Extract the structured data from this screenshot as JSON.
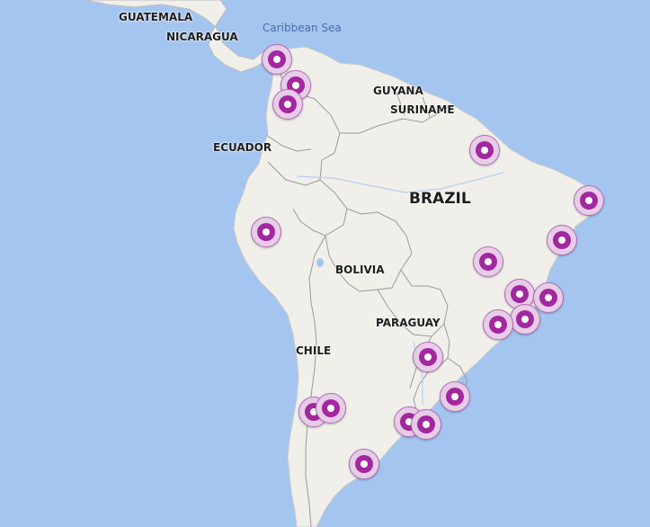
{
  "map": {
    "country_labels": [
      {
        "id": "guatemala",
        "text": "GUATEMALA"
      },
      {
        "id": "nicaragua",
        "text": "NICARAGUA"
      },
      {
        "id": "guyana",
        "text": "GUYANA"
      },
      {
        "id": "suriname",
        "text": "SURINAME"
      },
      {
        "id": "ecuador",
        "text": "ECUADOR"
      },
      {
        "id": "brazil",
        "text": "BRAZIL"
      },
      {
        "id": "bolivia",
        "text": "BOLIVIA"
      },
      {
        "id": "paraguay",
        "text": "PARAGUAY"
      },
      {
        "id": "chile",
        "text": "CHILE"
      }
    ],
    "sea_label": "Caribbean Sea",
    "marker_count": 22,
    "colors": {
      "water": "#a4c5ef",
      "land": "#f1efea",
      "border": "#9a9a9a",
      "marker_core": "#a3279e",
      "marker_ring": "#e7cde8"
    }
  }
}
